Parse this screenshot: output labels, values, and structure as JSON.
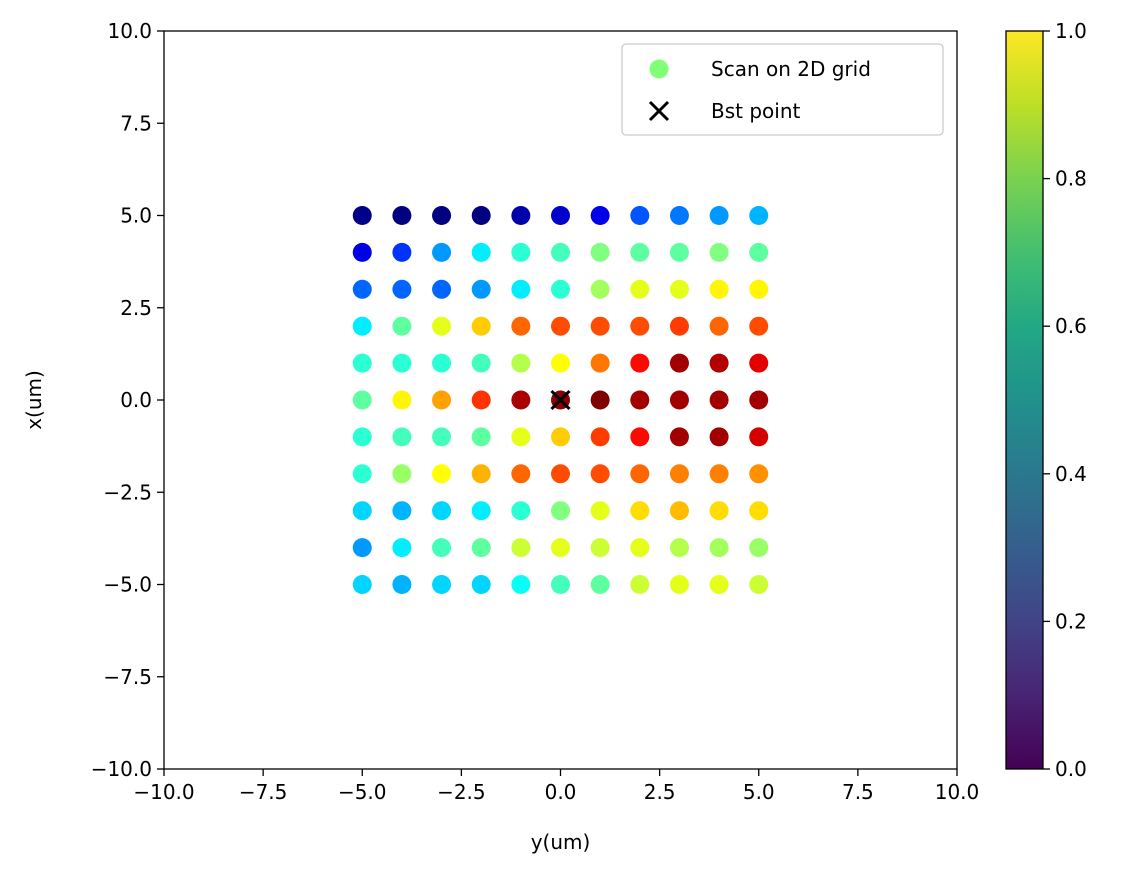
{
  "chart_data": {
    "type": "scatter",
    "xlabel": "y(um)",
    "ylabel": "x(um)",
    "xlim": [
      -10,
      10
    ],
    "ylim": [
      -10,
      10
    ],
    "xticks": [
      "−10.0",
      "−7.5",
      "−5.0",
      "−2.5",
      "0.0",
      "2.5",
      "5.0",
      "7.5",
      "10.0"
    ],
    "yticks": [
      "−10.0",
      "−7.5",
      "−5.0",
      "−2.5",
      "0.0",
      "2.5",
      "5.0",
      "7.5",
      "10.0"
    ],
    "grid": false,
    "legend": {
      "placement": "top-right",
      "entries": [
        {
          "label": "Scan on 2D grid",
          "marker": "circle",
          "color": "#80ff77"
        },
        {
          "label": "Bst point",
          "marker": "x",
          "color": "#000000"
        }
      ]
    },
    "colormap": "jet",
    "grid_x": [
      -5,
      -4,
      -3,
      -2,
      -1,
      0,
      1,
      2,
      3,
      4,
      5
    ],
    "grid_y": [
      5,
      4,
      3,
      2,
      1,
      0,
      -1,
      -2,
      -3,
      -4,
      -5
    ],
    "values": [
      [
        0.25,
        0.24,
        0.24,
        0.24,
        0.29,
        0.33,
        0.36,
        0.49,
        0.53,
        0.57,
        0.6
      ],
      [
        0.36,
        0.45,
        0.57,
        0.67,
        0.74,
        0.77,
        0.84,
        0.8,
        0.8,
        0.84,
        0.8
      ],
      [
        0.51,
        0.51,
        0.51,
        0.57,
        0.67,
        0.74,
        0.88,
        0.96,
        0.96,
        1.0,
        1.0
      ],
      [
        0.67,
        0.8,
        0.96,
        1.05,
        1.17,
        1.2,
        1.2,
        1.2,
        1.22,
        1.17,
        1.2
      ],
      [
        0.74,
        0.74,
        0.74,
        0.77,
        0.9,
        0.99,
        1.15,
        1.28,
        1.4,
        1.38,
        1.32
      ],
      [
        0.8,
        1.0,
        1.1,
        1.23,
        1.39,
        1.43,
        1.44,
        1.4,
        1.4,
        1.4,
        1.4
      ],
      [
        0.74,
        0.77,
        0.77,
        0.8,
        0.96,
        1.05,
        1.22,
        1.28,
        1.4,
        1.4,
        1.34
      ],
      [
        0.74,
        0.87,
        0.99,
        1.08,
        1.17,
        1.2,
        1.2,
        1.17,
        1.14,
        1.14,
        1.12
      ],
      [
        0.64,
        0.6,
        0.64,
        0.67,
        0.74,
        0.84,
        0.96,
        1.03,
        1.07,
        1.03,
        1.03
      ],
      [
        0.57,
        0.67,
        0.77,
        0.8,
        0.93,
        0.96,
        0.93,
        0.96,
        0.9,
        0.88,
        0.87
      ],
      [
        0.64,
        0.6,
        0.64,
        0.64,
        0.7,
        0.77,
        0.8,
        0.93,
        0.96,
        0.96,
        0.93
      ]
    ],
    "best_point": {
      "y_um": 0.0,
      "x_um": 0.0
    },
    "colorbar": {
      "cmap": "viridis",
      "range": [
        0,
        1
      ],
      "ticks": [
        "0.0",
        "0.2",
        "0.4",
        "0.6",
        "0.8",
        "1.0"
      ]
    }
  }
}
